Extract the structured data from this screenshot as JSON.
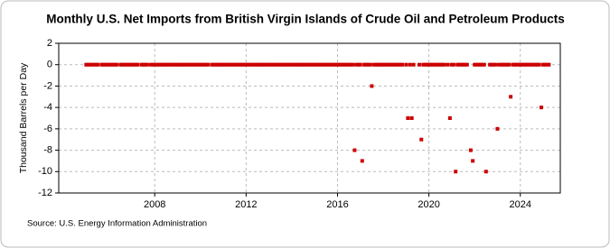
{
  "chart_data": {
    "type": "scatter",
    "title": "Monthly U.S. Net Imports from British Virgin Islands of Crude Oil and Petroleum Products",
    "y_label": "Thousand Barrels per Day",
    "source": "Source: U.S. Energy Information Administration",
    "xlim": [
      2003.8,
      2025.75
    ],
    "xticks": [
      2008,
      2012,
      2016,
      2020,
      2024
    ],
    "ylim": [
      -12,
      2
    ],
    "yticks": [
      2,
      0,
      -2,
      -4,
      -6,
      -8,
      -10,
      -12
    ],
    "grid": true,
    "series": [
      {
        "name": "Net imports",
        "color": "#cc0000",
        "x": [
          2005,
          2005.08,
          2005.17,
          2005.25,
          2005.33,
          2005.42,
          2005.5,
          2005.67,
          2005.75,
          2005.83,
          2005.92,
          2006,
          2006.08,
          2006.17,
          2006.25,
          2006.33,
          2006.5,
          2006.58,
          2006.67,
          2006.75,
          2006.83,
          2006.92,
          2007,
          2007.08,
          2007.17,
          2007.25,
          2007.42,
          2007.5,
          2007.58,
          2007.67,
          2007.83,
          2007.92,
          2008,
          2008.08,
          2008.17,
          2008.25,
          2008.33,
          2008.42,
          2008.5,
          2008.58,
          2008.67,
          2008.75,
          2008.83,
          2008.92,
          2009,
          2009.08,
          2009.17,
          2009.25,
          2009.33,
          2009.42,
          2009.5,
          2009.58,
          2009.67,
          2009.75,
          2009.83,
          2009.92,
          2010,
          2010.08,
          2010.17,
          2010.25,
          2010.33,
          2010.5,
          2010.58,
          2010.67,
          2010.75,
          2010.83,
          2010.92,
          2011,
          2011.08,
          2011.17,
          2011.25,
          2011.33,
          2011.42,
          2011.5,
          2011.58,
          2011.67,
          2011.75,
          2011.83,
          2011.92,
          2012,
          2012.08,
          2012.17,
          2012.25,
          2012.33,
          2012.42,
          2012.5,
          2012.58,
          2012.67,
          2012.75,
          2012.83,
          2012.92,
          2013,
          2013.08,
          2013.17,
          2013.25,
          2013.33,
          2013.42,
          2013.5,
          2013.58,
          2013.67,
          2013.75,
          2013.83,
          2013.92,
          2014,
          2014.08,
          2014.17,
          2014.25,
          2014.33,
          2014.42,
          2014.5,
          2014.58,
          2014.67,
          2014.75,
          2014.83,
          2014.92,
          2015,
          2015.08,
          2015.17,
          2015.25,
          2015.33,
          2015.42,
          2015.5,
          2015.58,
          2015.67,
          2015.75,
          2015.83,
          2015.92,
          2016,
          2016.08,
          2016.17,
          2016.25,
          2016.33,
          2016.42,
          2016.5,
          2016.58,
          2016.67,
          2016.75,
          2016.83,
          2016.92,
          2017,
          2017.08,
          2017.17,
          2017.25,
          2017.33,
          2017.42,
          2017.5,
          2017.58,
          2017.67,
          2017.75,
          2017.83,
          2017.92,
          2018,
          2018.08,
          2018.17,
          2018.25,
          2018.33,
          2018.42,
          2018.5,
          2018.58,
          2018.67,
          2018.75,
          2018.83,
          2019,
          2019.08,
          2019.17,
          2019.25,
          2019.33,
          2019.58,
          2019.67,
          2019.75,
          2019.83,
          2019.92,
          2020,
          2020.08,
          2020.17,
          2020.25,
          2020.33,
          2020.42,
          2020.5,
          2020.58,
          2020.67,
          2020.83,
          2020.92,
          2021,
          2021.08,
          2021.17,
          2021.25,
          2021.33,
          2021.42,
          2021.5,
          2021.58,
          2021.67,
          2021.83,
          2021.92,
          2022,
          2022.08,
          2022.17,
          2022.25,
          2022.33,
          2022.42,
          2022.5,
          2022.67,
          2022.75,
          2022.83,
          2022.92,
          2023,
          2023.08,
          2023.17,
          2023.25,
          2023.33,
          2023.42,
          2023.5,
          2023.58,
          2023.67,
          2023.75,
          2023.83,
          2023.92,
          2024,
          2024.08,
          2024.17,
          2024.25,
          2024.33,
          2024.42,
          2024.5,
          2024.58,
          2024.67,
          2024.75,
          2024.83,
          2024.92,
          2025,
          2025.08,
          2025.17,
          2025.25
        ],
        "values": [
          0,
          0,
          0,
          0,
          0,
          0,
          0,
          0,
          0,
          0,
          0,
          0,
          0,
          0,
          0,
          0,
          0,
          0,
          0,
          0,
          0,
          0,
          0,
          0,
          0,
          0,
          0,
          0,
          0,
          0,
          0,
          0,
          0,
          0,
          0,
          0,
          0,
          0,
          0,
          0,
          0,
          0,
          0,
          0,
          0,
          0,
          0,
          0,
          0,
          0,
          0,
          0,
          0,
          0,
          0,
          0,
          0,
          0,
          0,
          0,
          0,
          0,
          0,
          0,
          0,
          0,
          0,
          0,
          0,
          0,
          0,
          0,
          0,
          0,
          0,
          0,
          0,
          0,
          0,
          0,
          0,
          0,
          0,
          0,
          0,
          0,
          0,
          0,
          0,
          0,
          0,
          0,
          0,
          0,
          0,
          0,
          0,
          0,
          0,
          0,
          0,
          0,
          0,
          0,
          0,
          0,
          0,
          0,
          0,
          0,
          0,
          0,
          0,
          0,
          0,
          0,
          0,
          0,
          0,
          0,
          0,
          0,
          0,
          0,
          0,
          0,
          0,
          0,
          0,
          0,
          0,
          0,
          0,
          0,
          0,
          0,
          -8,
          0,
          0,
          0,
          -9,
          0,
          0,
          0,
          0,
          -2,
          0,
          0,
          0,
          0,
          0,
          0,
          0,
          0,
          0,
          0,
          0,
          0,
          0,
          0,
          0,
          0,
          0,
          -5,
          0,
          -5,
          0,
          0,
          -7,
          0,
          0,
          0,
          0,
          0,
          0,
          0,
          0,
          0,
          0,
          0,
          0,
          0,
          -5,
          0,
          0,
          -10,
          0,
          0,
          0,
          0,
          0,
          0,
          -8,
          -9,
          0,
          0,
          0,
          0,
          0,
          0,
          -10,
          0,
          0,
          0,
          0,
          -6,
          0,
          0,
          0,
          0,
          0,
          0,
          -3,
          0,
          0,
          0,
          0,
          0,
          0,
          0,
          0,
          0,
          0,
          0,
          0,
          0,
          0,
          0,
          -4,
          0,
          0,
          0,
          0
        ]
      }
    ]
  }
}
